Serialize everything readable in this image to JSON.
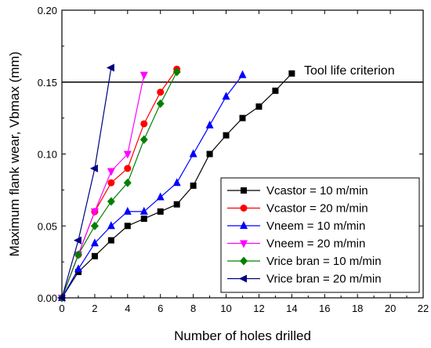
{
  "chart_data": {
    "type": "line",
    "title": "",
    "xlabel": "Number of holes drilled",
    "ylabel": "Maximum flank wear, Vbmax (mm)",
    "xlim": [
      0,
      22
    ],
    "ylim": [
      0,
      0.2
    ],
    "xticks": [
      0,
      2,
      4,
      6,
      8,
      10,
      12,
      14,
      16,
      18,
      20,
      22
    ],
    "yticks": [
      "0.00",
      "0.05",
      "0.10",
      "0.15",
      "0.20"
    ],
    "grid": false,
    "legend_position": "bottom-right",
    "reference_line": {
      "y": 0.15,
      "label": "Tool life criterion"
    },
    "series": [
      {
        "name": "Vcastor = 10 m/min",
        "color": "#000000",
        "marker": "square",
        "x": [
          0,
          1,
          2,
          3,
          4,
          5,
          6,
          7,
          8,
          9,
          10,
          11,
          12,
          13,
          14
        ],
        "y": [
          0,
          0.018,
          0.029,
          0.04,
          0.05,
          0.055,
          0.06,
          0.065,
          0.078,
          0.1,
          0.113,
          0.125,
          0.133,
          0.144,
          0.156
        ]
      },
      {
        "name": "Vcastor = 20 m/min",
        "color": "#ff0000",
        "marker": "circle",
        "x": [
          0,
          1,
          2,
          3,
          4,
          5,
          6,
          7
        ],
        "y": [
          0,
          0.03,
          0.06,
          0.08,
          0.09,
          0.121,
          0.143,
          0.159
        ]
      },
      {
        "name": "Vneem = 10 m/min",
        "color": "#0000ff",
        "marker": "triangle-up",
        "x": [
          0,
          1,
          2,
          3,
          4,
          5,
          6,
          7,
          8,
          9,
          10,
          11
        ],
        "y": [
          0,
          0.02,
          0.038,
          0.05,
          0.06,
          0.06,
          0.07,
          0.08,
          0.1,
          0.12,
          0.14,
          0.155
        ]
      },
      {
        "name": "Vneem = 20 m/min",
        "color": "#ff00ff",
        "marker": "triangle-down",
        "x": [
          0,
          1,
          2,
          3,
          4,
          5
        ],
        "y": [
          0,
          0.03,
          0.06,
          0.088,
          0.1,
          0.155
        ]
      },
      {
        "name": "Vrice bran = 10 m/min",
        "color": "#008000",
        "marker": "diamond",
        "x": [
          0,
          1,
          2,
          3,
          4,
          5,
          6,
          7
        ],
        "y": [
          0,
          0.03,
          0.05,
          0.067,
          0.08,
          0.11,
          0.135,
          0.157
        ]
      },
      {
        "name": "Vrice bran = 20 m/min",
        "color": "#000080",
        "marker": "triangle-left",
        "x": [
          0,
          1,
          2,
          3
        ],
        "y": [
          0,
          0.04,
          0.09,
          0.16
        ]
      }
    ]
  }
}
